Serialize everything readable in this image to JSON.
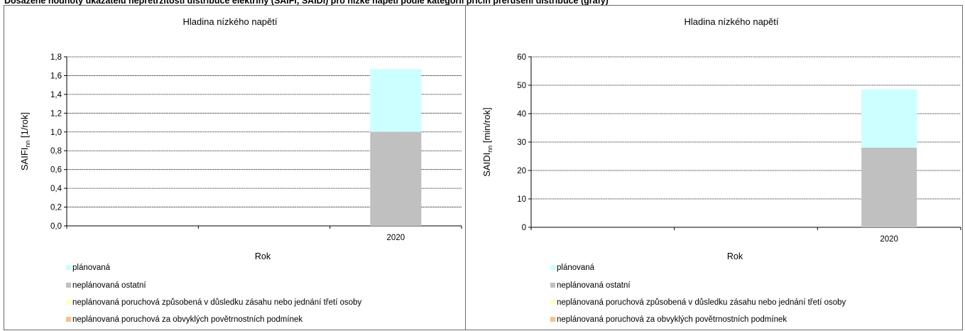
{
  "header": {
    "text": "Dosažené hodnoty ukazatelů nepřetržitosti distribuce elektřiny (SAIFI, SAIDI) pro nízké napětí podle kategorií příčin přerušení distribuce (grafy)"
  },
  "chart_data": [
    {
      "type": "bar",
      "stacked": true,
      "title": "Hladina nízkého napětí",
      "xlabel": "Rok",
      "ylabel_main": "SAIFI",
      "ylabel_sub": "nn",
      "ylabel_unit": " [1/rok]",
      "categories": [
        "",
        "",
        "2020"
      ],
      "ylim": [
        0,
        1.8
      ],
      "yticks": [
        "0,0",
        "0,2",
        "0,4",
        "0,6",
        "0,8",
        "1,0",
        "1,2",
        "1,4",
        "1,6",
        "1,8"
      ],
      "grid": true,
      "legend_position": "bottom-left",
      "series": [
        {
          "name": "plánovaná",
          "color": "#ccffff",
          "values": [
            0,
            0,
            0.67
          ]
        },
        {
          "name": "neplánovaná ostatní",
          "color": "#c0c0c0",
          "values": [
            0,
            0,
            1.0
          ]
        },
        {
          "name": "neplánovaná poruchová způsobená v důsledku zásahu nebo jednání třetí osoby",
          "color": "#ffffcc",
          "values": [
            0,
            0,
            0
          ]
        },
        {
          "name": "neplánovaná poruchová za obvyklých povětrnostních podmínek",
          "color": "#fac090",
          "values": [
            0,
            0,
            0
          ]
        }
      ]
    },
    {
      "type": "bar",
      "stacked": true,
      "title": "Hladina nízkého napětí",
      "xlabel": "Rok",
      "ylabel_main": "SAIDI",
      "ylabel_sub": "nn",
      "ylabel_unit": " [min/rok]",
      "categories": [
        "",
        "",
        "2020"
      ],
      "ylim": [
        0,
        60
      ],
      "yticks": [
        "0",
        "10",
        "20",
        "30",
        "40",
        "50",
        "60"
      ],
      "grid": true,
      "legend_position": "bottom-left",
      "series": [
        {
          "name": "plánovaná",
          "color": "#ccffff",
          "values": [
            0,
            0,
            20.5
          ]
        },
        {
          "name": "neplánovaná ostatní",
          "color": "#c0c0c0",
          "values": [
            0,
            0,
            28
          ]
        },
        {
          "name": "neplánovaná poruchová způsobená v důsledku zásahu nebo jednání třetí osoby",
          "color": "#ffffcc",
          "values": [
            0,
            0,
            0
          ]
        },
        {
          "name": "neplánovaná poruchová za obvyklých povětrnostních podmínek",
          "color": "#fac090",
          "values": [
            0,
            0,
            0
          ]
        }
      ]
    }
  ]
}
